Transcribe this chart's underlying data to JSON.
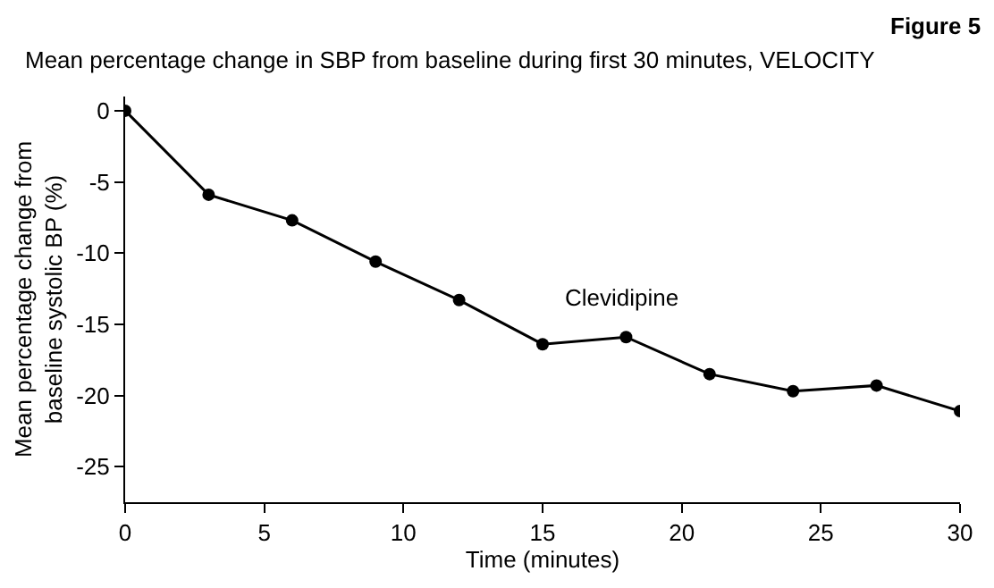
{
  "chart_data": {
    "type": "line",
    "title": "Mean percentage change in SBP from baseline during first 30 minutes, VELOCITY",
    "annotations": [
      "Figure 5"
    ],
    "xlabel": "Time (minutes)",
    "ylabel": "Mean percentage change from\nbaseline systolic BP (%)",
    "x": [
      0,
      3,
      6,
      9,
      12,
      15,
      18,
      21,
      24,
      27,
      30
    ],
    "series": [
      {
        "name": "Clevidipine",
        "color": "#000000",
        "values": [
          0,
          -5.9,
          -7.7,
          -10.6,
          -13.3,
          -16.4,
          -15.9,
          -18.5,
          -19.7,
          -19.3,
          -21.1
        ]
      }
    ],
    "xlim": [
      0,
      30
    ],
    "xticks": [
      0,
      5,
      10,
      15,
      20,
      25,
      30
    ],
    "ylim": [
      -27.5,
      1
    ],
    "yticks": [
      0,
      -5,
      -10,
      -15,
      -20,
      -25
    ],
    "legend": false,
    "marker": "circle",
    "line_style": "solid"
  }
}
